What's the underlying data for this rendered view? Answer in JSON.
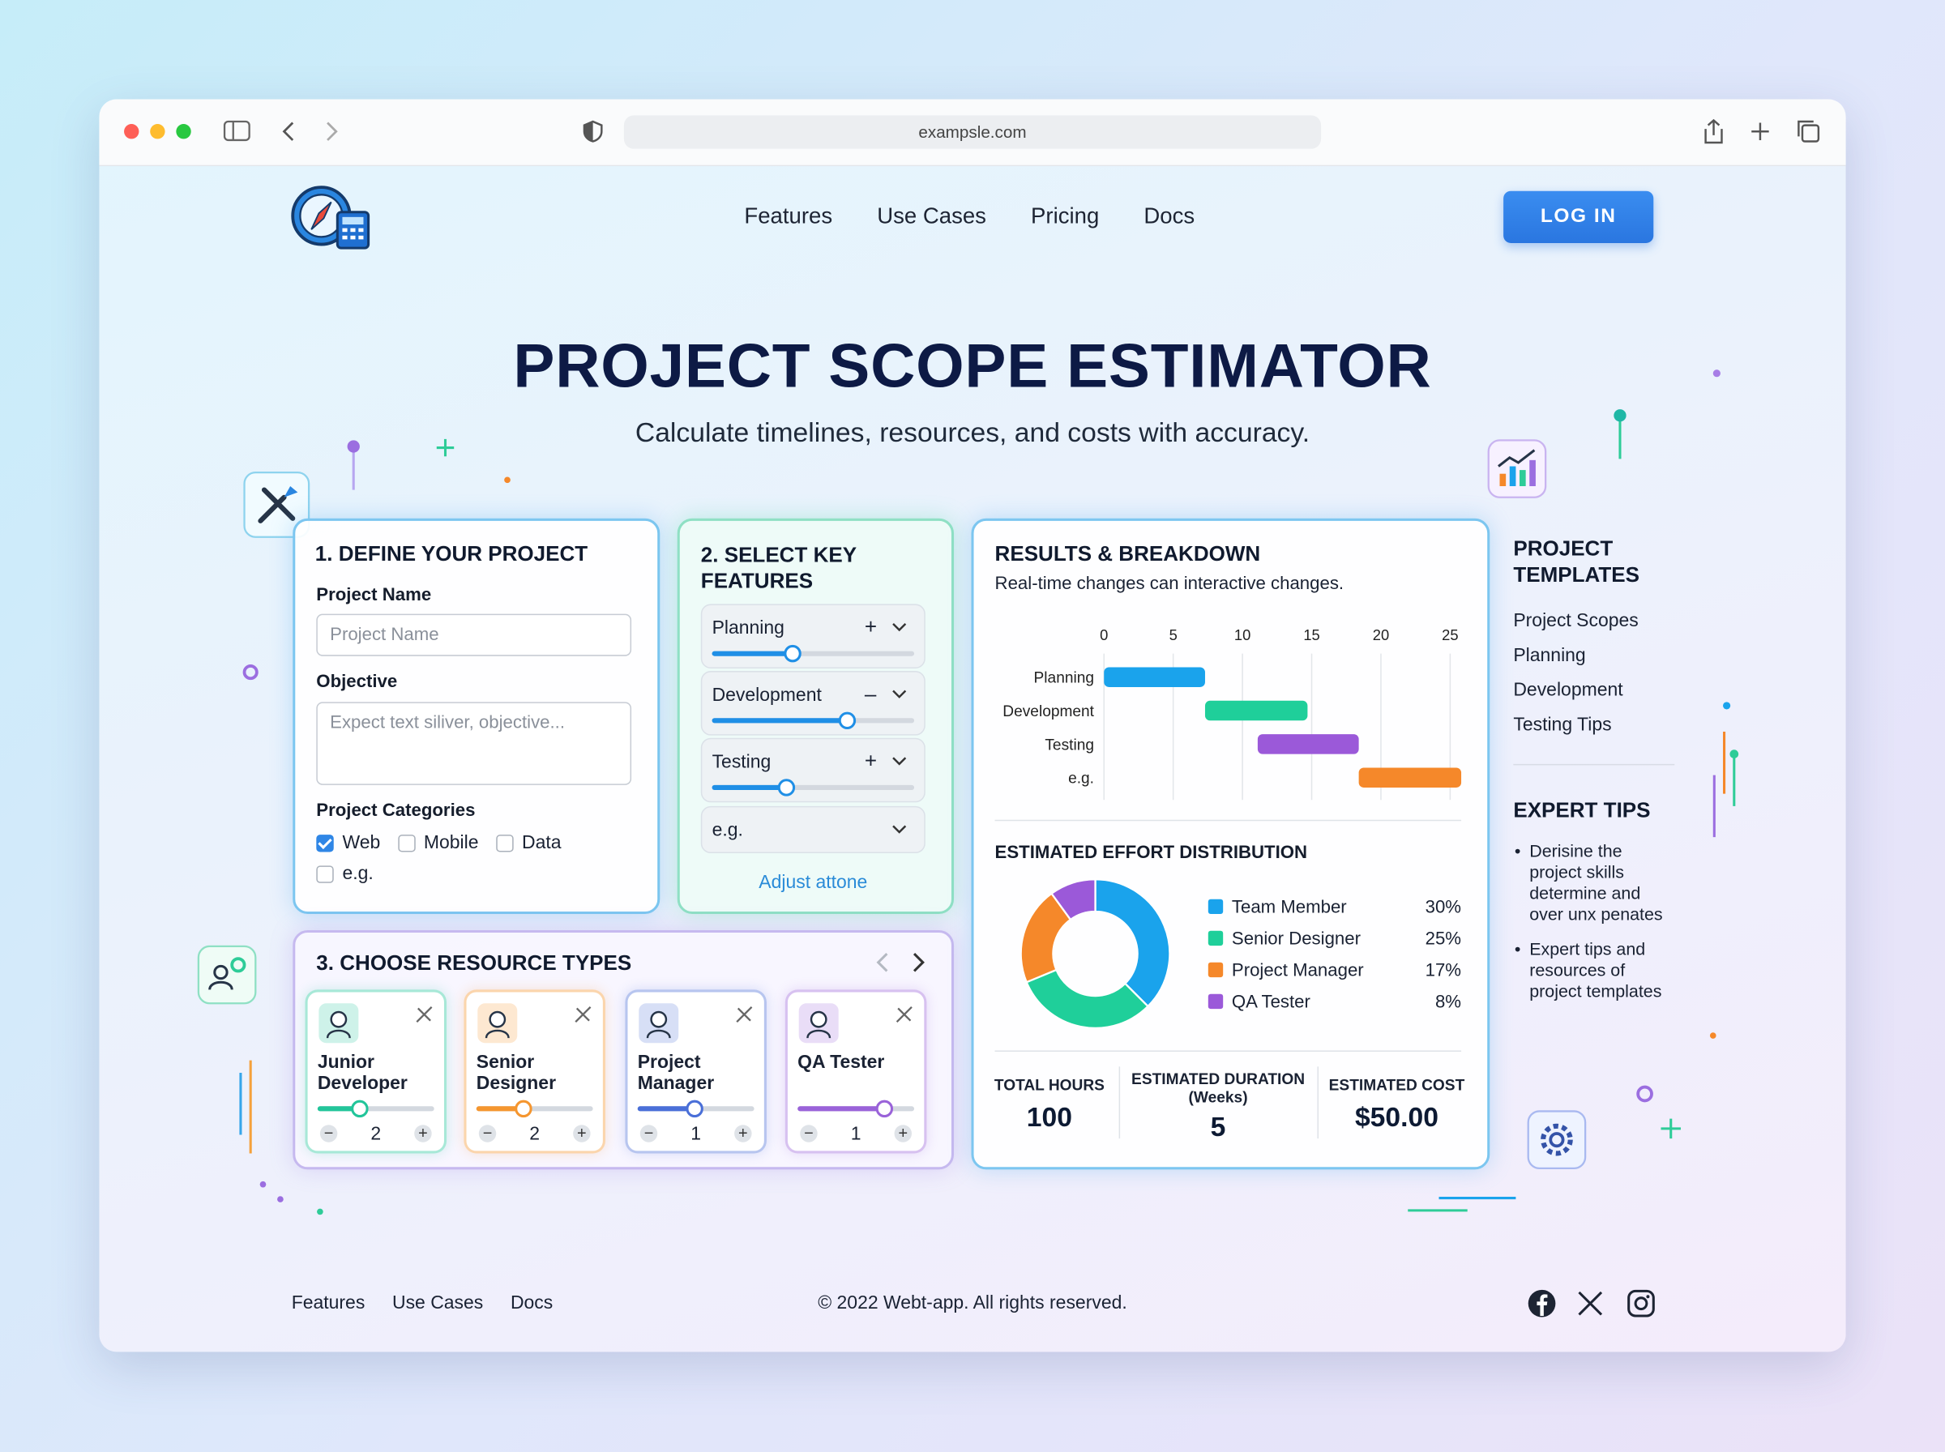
{
  "browser": {
    "url": "exampsle.com"
  },
  "nav": {
    "links": [
      "Features",
      "Use Cases",
      "Pricing",
      "Docs"
    ],
    "login": "LOG IN"
  },
  "hero": {
    "title": "PROJECT SCOPE ESTIMATOR",
    "subtitle": "Calculate timelines, resources, and costs with accuracy."
  },
  "define": {
    "title": "1. DEFINE YOUR PROJECT",
    "name_label": "Project Name",
    "name_placeholder": "Project Name",
    "objective_label": "Objective",
    "objective_placeholder": "Expect text siliver, objective...",
    "categories_label": "Project Categories",
    "categories": [
      {
        "label": "Web",
        "checked": true
      },
      {
        "label": "Mobile",
        "checked": false
      },
      {
        "label": "Data",
        "checked": false
      },
      {
        "label": "e.g.",
        "checked": false
      }
    ]
  },
  "features": {
    "title": "2. SELECT KEY FEATURES",
    "items": [
      {
        "label": "Planning",
        "sign": "+",
        "slider": 40
      },
      {
        "label": "Development",
        "sign": "–",
        "slider": 67
      },
      {
        "label": "Testing",
        "sign": "+",
        "slider": 37
      }
    ],
    "extra": "e.g.",
    "link": "Adjust attone"
  },
  "resources": {
    "title": "3. CHOOSE RESOURCE TYPES",
    "items": [
      {
        "name": "Junior Developer",
        "count": 2,
        "slider": 36,
        "color": "#22c59a"
      },
      {
        "name": "Senior Designer",
        "count": 2,
        "slider": 40,
        "color": "#f5962f"
      },
      {
        "name": "Project Manager",
        "count": 1,
        "slider": 49,
        "color": "#4a6fd8"
      },
      {
        "name": "QA Tester",
        "count": 1,
        "slider": 74,
        "color": "#9a63d9"
      }
    ]
  },
  "results": {
    "title": "RESULTS & BREAKDOWN",
    "subtitle": "Real-time changes can interactive changes.",
    "timeline": {
      "type": "gantt",
      "categories": [
        "Planning",
        "Development",
        "Testing",
        "e.g."
      ],
      "start": [
        0,
        7.3,
        11.1,
        18.4
      ],
      "end": [
        7.3,
        14.7,
        18.4,
        25.8
      ],
      "colors": [
        "#1aa3ec",
        "#1fcf9a",
        "#9b59d9",
        "#f5882a"
      ],
      "xlim": [
        0,
        25.8
      ],
      "xticks": [
        0,
        5,
        10,
        15,
        20,
        25
      ],
      "grid": true
    },
    "distribution": {
      "type": "donut",
      "title": "ESTIMATED EFFORT DISTRIBUTION",
      "categories": [
        "Team Member",
        "Senior Designer",
        "Project Manager",
        "QA Tester"
      ],
      "values": [
        30,
        25,
        17,
        8
      ],
      "value_labels": [
        "30%",
        "25%",
        "17%",
        "8%"
      ],
      "colors": [
        "#1aa3ec",
        "#1fcf9a",
        "#f5882a",
        "#9b59d9"
      ]
    },
    "totals": [
      {
        "label": "TOTAL HOURS",
        "value": 100
      },
      {
        "label": "ESTIMATED DURATION",
        "sublabel": "(Weeks)",
        "value": 5
      },
      {
        "label": "ESTIMATED COST",
        "value": "$50.00"
      }
    ]
  },
  "sidebar": {
    "templates_title": "PROJECT TEMPLATES",
    "templates": [
      "Project Scopes",
      "Planning",
      "Development",
      "Testing Tips"
    ],
    "tips_title": "EXPERT TIPS",
    "tips": [
      "Derisine the project skills determine and over unx penates",
      "Expert tips and resources of project templates"
    ]
  },
  "footer": {
    "links": [
      "Features",
      "Use Cases",
      "Docs"
    ],
    "copyright": "© 2022 Webt-app. All rights reserved."
  }
}
